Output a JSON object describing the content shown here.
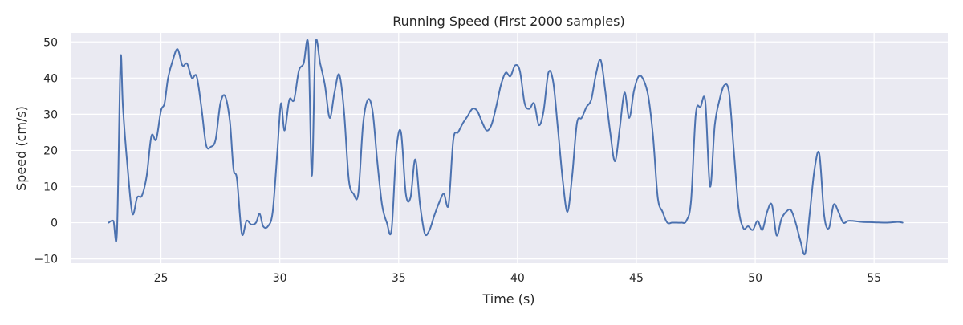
{
  "chart_data": {
    "type": "line",
    "title": "Running Speed (First 2000 samples)",
    "xlabel": "Time (s)",
    "ylabel": "Speed (cm/s)",
    "xlim": [
      21.2,
      58.1
    ],
    "ylim": [
      -11.2,
      52.5
    ],
    "xticks": [
      25,
      30,
      35,
      40,
      45,
      50,
      55
    ],
    "yticks": [
      -10,
      0,
      10,
      20,
      30,
      40,
      50
    ],
    "xtick_labels": [
      "25",
      "30",
      "35",
      "40",
      "45",
      "50",
      "55"
    ],
    "ytick_labels": [
      "−10",
      "0",
      "10",
      "20",
      "30",
      "40",
      "50"
    ],
    "grid": true,
    "colors": {
      "background": "#eaeaf2",
      "grid": "#ffffff",
      "line": "#4c72b0",
      "text": "#262626"
    },
    "series": [
      {
        "x": [
          22.8,
          23.0,
          23.15,
          23.3,
          23.4,
          23.6,
          23.8,
          24.0,
          24.2,
          24.4,
          24.6,
          24.8,
          25.0,
          25.15,
          25.3,
          25.5,
          25.7,
          25.9,
          26.1,
          26.3,
          26.5,
          26.7,
          26.9,
          27.1,
          27.3,
          27.5,
          27.7,
          27.9,
          28.05,
          28.2,
          28.4,
          28.6,
          28.8,
          29.0,
          29.15,
          29.3,
          29.5,
          29.7,
          29.9,
          30.05,
          30.2,
          30.4,
          30.6,
          30.8,
          31.0,
          31.2,
          31.35,
          31.5,
          31.7,
          31.9,
          32.1,
          32.3,
          32.5,
          32.7,
          32.9,
          33.1,
          33.3,
          33.5,
          33.7,
          33.9,
          34.1,
          34.3,
          34.5,
          34.7,
          34.9,
          35.1,
          35.3,
          35.5,
          35.7,
          35.9,
          36.1,
          36.3,
          36.5,
          36.7,
          36.9,
          37.1,
          37.3,
          37.5,
          37.7,
          37.9,
          38.1,
          38.3,
          38.5,
          38.7,
          38.9,
          39.1,
          39.3,
          39.5,
          39.7,
          39.9,
          40.1,
          40.3,
          40.5,
          40.7,
          40.9,
          41.1,
          41.3,
          41.5,
          41.7,
          41.9,
          42.1,
          42.3,
          42.5,
          42.7,
          42.9,
          43.1,
          43.3,
          43.5,
          43.7,
          43.9,
          44.1,
          44.3,
          44.5,
          44.7,
          44.9,
          45.1,
          45.3,
          45.5,
          45.7,
          45.9,
          46.1,
          46.3,
          46.5,
          46.7,
          46.9,
          47.1,
          47.3,
          47.5,
          47.7,
          47.9,
          48.1,
          48.3,
          48.5,
          48.7,
          48.9,
          49.1,
          49.3,
          49.5,
          49.7,
          49.9,
          50.1,
          50.3,
          50.5,
          50.7,
          50.9,
          51.1,
          51.3,
          51.5,
          51.7,
          51.9,
          52.1,
          52.3,
          52.5,
          52.7,
          52.9,
          53.1,
          53.3,
          53.5,
          53.7,
          53.9,
          54.1,
          54.5,
          55.0,
          55.5,
          56.0,
          56.2
        ],
        "y": [
          0,
          0.5,
          -2.5,
          45,
          32,
          15,
          2.5,
          7,
          7.5,
          13,
          24,
          23,
          31,
          33,
          40,
          45,
          48,
          43.5,
          44,
          40,
          40.5,
          32,
          21.5,
          21,
          23,
          33,
          35,
          28,
          15,
          12,
          -3,
          0.5,
          -0.5,
          0,
          2.5,
          -1,
          -1,
          3,
          20,
          33,
          25.5,
          34,
          34,
          42,
          44,
          49,
          13,
          49,
          44,
          38,
          29,
          36,
          41,
          31,
          12,
          8,
          8,
          27,
          34,
          31,
          17,
          5,
          0,
          -2,
          20,
          25,
          8,
          7,
          17.5,
          5,
          -3,
          -2,
          2,
          5.5,
          8,
          5,
          23,
          25,
          27.5,
          29.5,
          31.5,
          31,
          28,
          25.5,
          27,
          32,
          38,
          41.5,
          40.5,
          43.5,
          42,
          33,
          31.5,
          33,
          27,
          31,
          41.5,
          39,
          26,
          12,
          3,
          13,
          27.5,
          29,
          32,
          34,
          41,
          45,
          36,
          25,
          17,
          26,
          36,
          29,
          36.5,
          40.5,
          39.5,
          35,
          24,
          7,
          3,
          0,
          0,
          0,
          0,
          0.5,
          6,
          30,
          32,
          33.5,
          10,
          27,
          34,
          38,
          36,
          20,
          4,
          -1.5,
          -1,
          -2,
          0.5,
          -2,
          3,
          5,
          -3.5,
          1,
          3,
          3.5,
          0,
          -5,
          -8.5,
          3,
          15,
          19,
          2,
          -1.5,
          5,
          3,
          0,
          0.5,
          0.5,
          0.2,
          0.1,
          0,
          0.2,
          0
        ]
      }
    ]
  }
}
